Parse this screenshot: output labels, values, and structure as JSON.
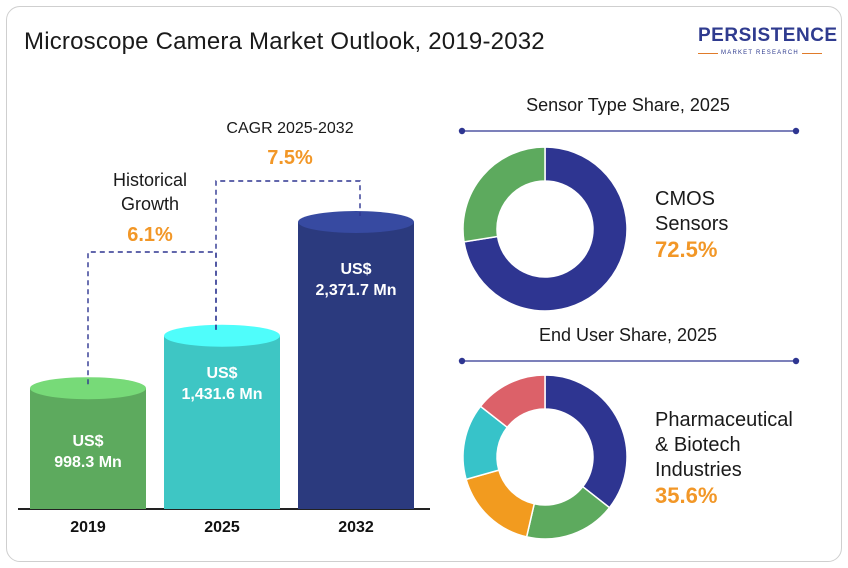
{
  "title": "Microscope Camera Market Outlook, 2019-2032",
  "logo": {
    "brand": "PERSISTENCE",
    "tagline": "MARKET RESEARCH"
  },
  "growth_notes": [
    {
      "label_lines": [
        "Historical",
        "Growth"
      ],
      "value": "6.1%"
    },
    {
      "label_lines": [
        "CAGR 2025-2032"
      ],
      "value": "7.5%"
    }
  ],
  "colors": {
    "green": "#5daa5e",
    "teal": "#3ec6c4",
    "navy": "#2b3a7e",
    "accent": "#f29727",
    "purple": "#2e3591",
    "red": "#dc6169",
    "orange": "#f29b1f",
    "cyan": "#37c3c9",
    "grey_green": "#6bb868"
  },
  "chart_data": [
    {
      "type": "bar",
      "title": "Microscope Camera Market Outlook, 2019-2032",
      "categories": [
        "2019",
        "2025",
        "2032"
      ],
      "values": [
        998.3,
        1431.6,
        2371.7
      ],
      "value_labels": [
        [
          "US$",
          "998.3 Mn"
        ],
        [
          "US$",
          "1,431.6 Mn"
        ],
        [
          "US$",
          "2,371.7 Mn"
        ]
      ],
      "colors": [
        "#5daa5e",
        "#3ec6c4",
        "#2b3a7e"
      ],
      "unit": "US$ Mn"
    },
    {
      "type": "pie",
      "title": "Sensor Type Share, 2025",
      "slices": [
        {
          "label": "CMOS Sensors",
          "value": 72.5,
          "color": "#2e3591"
        },
        {
          "label": "",
          "value": 27.5,
          "color": "#5daa5e"
        }
      ],
      "callout": {
        "label_lines": [
          "CMOS",
          "Sensors"
        ],
        "value": "72.5%"
      }
    },
    {
      "type": "pie",
      "title": "End User  Share, 2025",
      "slices": [
        {
          "label": "Pharmaceutical & Biotech Industries",
          "value": 35.6,
          "color": "#2e3591"
        },
        {
          "label": "",
          "value": 18.0,
          "color": "#5daa5e"
        },
        {
          "label": "",
          "value": 17.0,
          "color": "#f29b1f"
        },
        {
          "label": "",
          "value": 15.0,
          "color": "#37c3c9"
        },
        {
          "label": "",
          "value": 14.4,
          "color": "#dc6169"
        }
      ],
      "callout": {
        "label_lines": [
          "Pharmaceutical",
          "& Biotech",
          "Industries"
        ],
        "value": "35.6%"
      }
    }
  ]
}
